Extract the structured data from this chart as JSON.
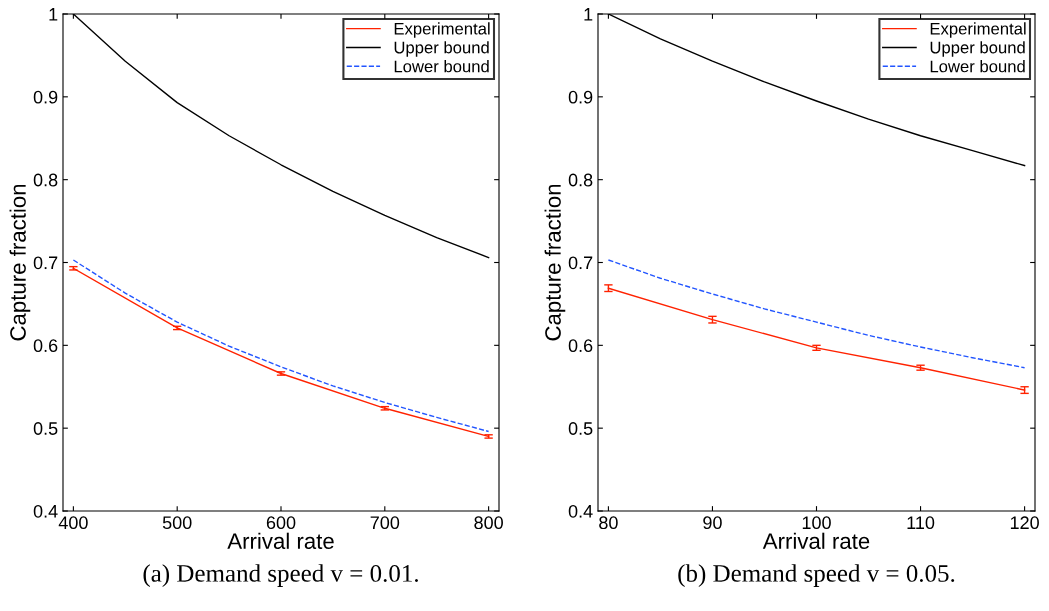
{
  "chart_data": [
    {
      "type": "line",
      "xlabel": "Arrival rate",
      "ylabel": "Capture fraction",
      "annotations": [
        "(a) Demand speed v = 0.01."
      ],
      "xlim": [
        390,
        810
      ],
      "xticks": [
        400,
        500,
        600,
        700,
        800
      ],
      "ylim": [
        0.4,
        1
      ],
      "yticks": [
        0.4,
        0.5,
        0.6,
        0.7,
        0.8,
        0.9,
        1
      ],
      "grid": false,
      "legend": "top right",
      "series": [
        {
          "name": "Experimental",
          "color": "#ff2200",
          "line_style": "solid",
          "x": [
            400,
            500,
            600,
            700,
            800
          ],
          "values": [
            0.693,
            0.621,
            0.566,
            0.524,
            0.49
          ],
          "errors": [
            0.002,
            0.002,
            0.002,
            0.002,
            0.002
          ]
        },
        {
          "name": "Upper bound",
          "color": "#000000",
          "line_style": "solid",
          "x": [
            400,
            450,
            500,
            550,
            600,
            650,
            700,
            750,
            800
          ],
          "values": [
            1.0,
            0.943,
            0.893,
            0.853,
            0.818,
            0.786,
            0.757,
            0.73,
            0.706
          ]
        },
        {
          "name": "Lower bound",
          "color": "#2255ff",
          "line_style": "dashed",
          "x": [
            400,
            450,
            500,
            550,
            600,
            650,
            700,
            750,
            800
          ],
          "values": [
            0.703,
            0.663,
            0.628,
            0.599,
            0.574,
            0.551,
            0.531,
            0.513,
            0.496
          ]
        }
      ]
    },
    {
      "type": "line",
      "xlabel": "Arrival rate",
      "ylabel": "Capture fraction",
      "annotations": [
        "(b) Demand speed v = 0.05."
      ],
      "xlim": [
        79,
        121
      ],
      "xticks": [
        80,
        90,
        100,
        110,
        120
      ],
      "ylim": [
        0.4,
        1
      ],
      "yticks": [
        0.4,
        0.5,
        0.6,
        0.7,
        0.8,
        0.9,
        1
      ],
      "grid": false,
      "legend": "top right",
      "series": [
        {
          "name": "Experimental",
          "color": "#ff2200",
          "line_style": "solid",
          "x": [
            80,
            90,
            100,
            110,
            120
          ],
          "values": [
            0.669,
            0.631,
            0.597,
            0.573,
            0.546
          ],
          "errors": [
            0.004,
            0.004,
            0.003,
            0.003,
            0.004
          ]
        },
        {
          "name": "Upper bound",
          "color": "#000000",
          "line_style": "solid",
          "x": [
            80,
            85,
            90,
            95,
            100,
            105,
            110,
            115,
            120
          ],
          "values": [
            1.0,
            0.97,
            0.943,
            0.918,
            0.895,
            0.873,
            0.853,
            0.835,
            0.817
          ]
        },
        {
          "name": "Lower bound",
          "color": "#2255ff",
          "line_style": "dashed",
          "x": [
            80,
            85,
            90,
            95,
            100,
            105,
            110,
            115,
            120
          ],
          "values": [
            0.703,
            0.681,
            0.662,
            0.644,
            0.628,
            0.612,
            0.598,
            0.585,
            0.573
          ]
        }
      ]
    }
  ]
}
